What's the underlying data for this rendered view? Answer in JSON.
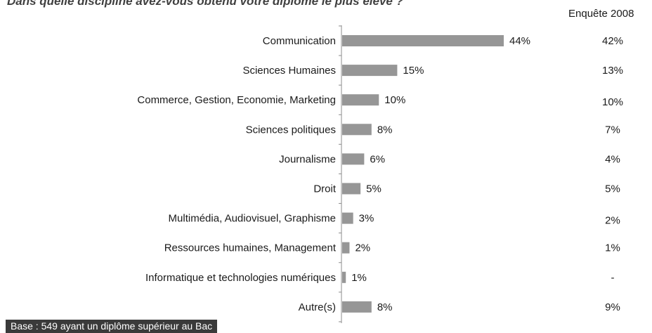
{
  "title": "Dans quelle discipline avez-vous obtenu votre diplôme le plus élevé ?",
  "footnote": "Base : 549 ayant un diplôme supérieur au Bac",
  "chart_data": {
    "type": "bar",
    "orientation": "horizontal",
    "categories": [
      "Communication",
      "Sciences Humaines",
      "Commerce, Gestion, Economie, Marketing",
      "Sciences politiques",
      "Journalisme",
      "Droit",
      "Multimédia, Audiovisuel, Graphisme",
      "Ressources humaines, Management",
      "Informatique et technologies numériques",
      "Autre(s)"
    ],
    "values": [
      44,
      15,
      10,
      8,
      6,
      5,
      3,
      2,
      1,
      8
    ],
    "value_labels": [
      "44%",
      "15%",
      "10%",
      "8%",
      "6%",
      "5%",
      "3%",
      "2%",
      "1%",
      "8%"
    ],
    "bar_color": "#969696",
    "comparison": {
      "header": "Enquête 2008",
      "labels": [
        "42%",
        "13%",
        "10%",
        "7%",
        "4%",
        "5%",
        "2%",
        "1%",
        "-",
        "9%"
      ]
    }
  }
}
